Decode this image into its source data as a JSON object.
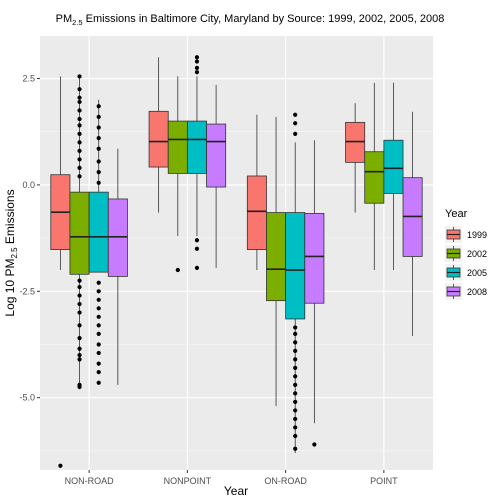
{
  "chart_data": {
    "type": "box",
    "title_prefix": "PM",
    "title_sub": "2.5",
    "title_suffix": " Emissions in Baltimore City, Maryland by Source: 1999, 2002, 2005, 2008",
    "xlabel": "Year",
    "ylabel_prefix": "Log 10 PM",
    "ylabel_sub": "2.5",
    "ylabel_suffix": " Emissions",
    "ylim": [
      -6.7,
      3.5
    ],
    "y_ticks": [
      {
        "value": 2.5,
        "label": "2.5"
      },
      {
        "value": 0.0,
        "label": "0.0"
      },
      {
        "value": -2.5,
        "label": "-2.5"
      },
      {
        "value": -5.0,
        "label": "-5.0"
      }
    ],
    "categories": [
      "NON-ROAD",
      "NONPOINT",
      "ON-ROAD",
      "POINT"
    ],
    "legend": {
      "title": "Year",
      "position": "right",
      "entries": [
        {
          "label": "1999",
          "color": "#F8766D"
        },
        {
          "label": "2002",
          "color": "#7CAE00"
        },
        {
          "label": "2005",
          "color": "#00BFC4"
        },
        {
          "label": "2008",
          "color": "#C77CFF"
        }
      ]
    },
    "series": [
      {
        "name": "1999",
        "color": "#F8766D",
        "boxes": [
          {
            "category": "NON-ROAD",
            "min": -2.0,
            "q1": -1.52,
            "median": -0.64,
            "q3": 0.24,
            "max": 2.55,
            "outliers": [
              -6.6
            ]
          },
          {
            "category": "NONPOINT",
            "min": -0.65,
            "q1": 0.42,
            "median": 1.02,
            "q3": 1.73,
            "max": 3.0,
            "outliers": []
          },
          {
            "category": "ON-ROAD",
            "min": -2.0,
            "q1": -1.52,
            "median": -0.62,
            "q3": 0.21,
            "max": 1.65,
            "outliers": []
          },
          {
            "category": "POINT",
            "min": -0.65,
            "q1": 0.53,
            "median": 1.02,
            "q3": 1.47,
            "max": 1.92,
            "outliers": []
          }
        ]
      },
      {
        "name": "2002",
        "color": "#7CAE00",
        "boxes": [
          {
            "category": "NON-ROAD",
            "min": -4.8,
            "q1": -2.1,
            "median": -1.22,
            "q3": -0.17,
            "max": 2.55,
            "outliers": [
              -4.75,
              -4.7,
              -4.1,
              -4.0,
              -3.85,
              -3.6,
              -3.3,
              -3.0,
              -2.8,
              -2.6,
              -2.4,
              -2.25,
              0.2,
              0.4,
              0.6,
              0.8,
              1.0,
              1.2,
              1.4,
              1.55,
              1.75,
              1.95,
              2.05,
              2.25,
              2.55
            ]
          },
          {
            "category": "NONPOINT",
            "min": -1.2,
            "q1": 0.27,
            "median": 1.07,
            "q3": 1.5,
            "max": 2.55,
            "outliers": [
              -2.0
            ]
          },
          {
            "category": "ON-ROAD",
            "min": -5.2,
            "q1": -2.72,
            "median": -1.98,
            "q3": -0.65,
            "max": 1.6,
            "outliers": []
          },
          {
            "category": "POINT",
            "min": -2.0,
            "q1": -0.43,
            "median": 0.31,
            "q3": 0.78,
            "max": 2.4,
            "outliers": []
          }
        ]
      },
      {
        "name": "2005",
        "color": "#00BFC4",
        "boxes": [
          {
            "category": "NON-ROAD",
            "min": -2.05,
            "q1": -2.05,
            "median": -1.22,
            "q3": -0.17,
            "max": 2.0,
            "outliers": [
              -4.65,
              -4.4,
              -4.2,
              -3.95,
              -3.75,
              -3.5,
              -3.3,
              -3.1,
              -2.9,
              -2.7,
              -2.5,
              -2.3,
              0.05,
              0.3,
              0.55,
              0.85,
              1.1,
              1.35,
              1.6,
              1.85
            ]
          },
          {
            "category": "NONPOINT",
            "min": -1.2,
            "q1": 0.27,
            "median": 1.07,
            "q3": 1.5,
            "max": 2.55,
            "outliers": [
              -1.95,
              -1.5,
              -1.3,
              3.0,
              2.9,
              2.75,
              2.65
            ]
          },
          {
            "category": "ON-ROAD",
            "min": -6.3,
            "q1": -3.15,
            "median": -2.0,
            "q3": -0.65,
            "max": 1.0,
            "outliers": [
              -6.2,
              -5.9,
              -5.7,
              -5.5,
              -5.3,
              -5.1,
              -4.9,
              -4.7,
              -4.5,
              -4.3,
              -4.1,
              -3.9,
              -3.7,
              -3.5,
              -3.35,
              1.2,
              1.45,
              1.65
            ]
          },
          {
            "category": "POINT",
            "min": -2.0,
            "q1": -0.2,
            "median": 0.39,
            "q3": 1.05,
            "max": 2.4,
            "outliers": []
          }
        ]
      },
      {
        "name": "2008",
        "color": "#C77CFF",
        "boxes": [
          {
            "category": "NON-ROAD",
            "min": -4.7,
            "q1": -2.15,
            "median": -1.22,
            "q3": -0.33,
            "max": 0.85,
            "outliers": []
          },
          {
            "category": "NONPOINT",
            "min": -1.95,
            "q1": -0.05,
            "median": 1.02,
            "q3": 1.43,
            "max": 2.35,
            "outliers": []
          },
          {
            "category": "ON-ROAD",
            "min": -5.6,
            "q1": -2.78,
            "median": -1.68,
            "q3": -0.67,
            "max": 1.05,
            "outliers": [
              -6.1
            ]
          },
          {
            "category": "POINT",
            "min": -3.55,
            "q1": -1.68,
            "median": -0.74,
            "q3": 0.17,
            "max": 1.72,
            "outliers": []
          }
        ]
      }
    ]
  }
}
